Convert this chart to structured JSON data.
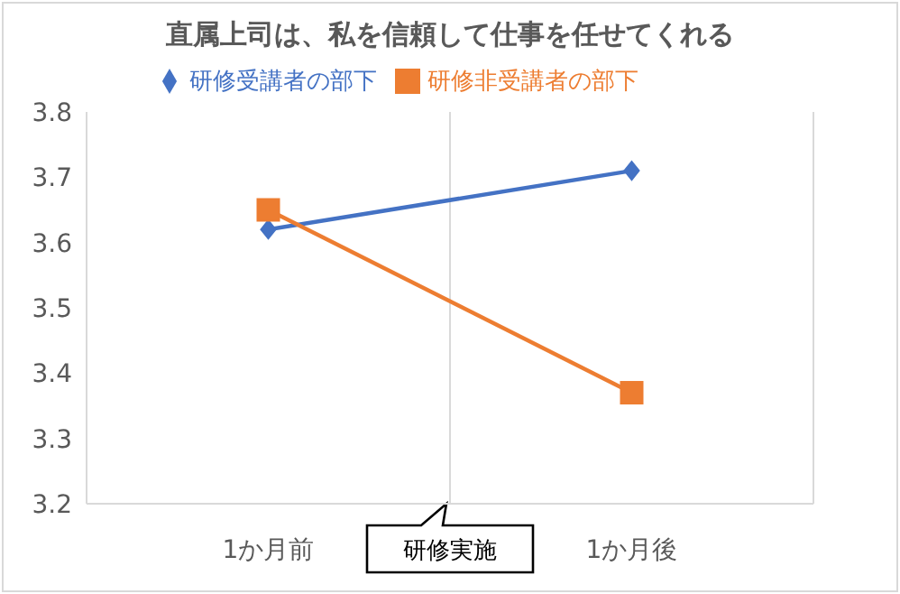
{
  "chart_data": {
    "type": "line",
    "title": "直属上司は、私を信頼して仕事を任せてくれる",
    "categories": [
      "1か月前",
      "1か月後"
    ],
    "ylim": [
      3.2,
      3.8
    ],
    "yticks": [
      3.2,
      3.3,
      3.4,
      3.5,
      3.6,
      3.7,
      3.8
    ],
    "series": [
      {
        "name": "研修受講者の部下",
        "color": "#4472c4",
        "values": [
          3.62,
          3.71
        ],
        "marker": "diamond"
      },
      {
        "name": "研修非受講者の部下",
        "color": "#ed7d31",
        "values": [
          3.65,
          3.37
        ],
        "marker": "square"
      }
    ],
    "annotations": [
      "研修実施"
    ],
    "legend": "top",
    "grid": "x"
  }
}
